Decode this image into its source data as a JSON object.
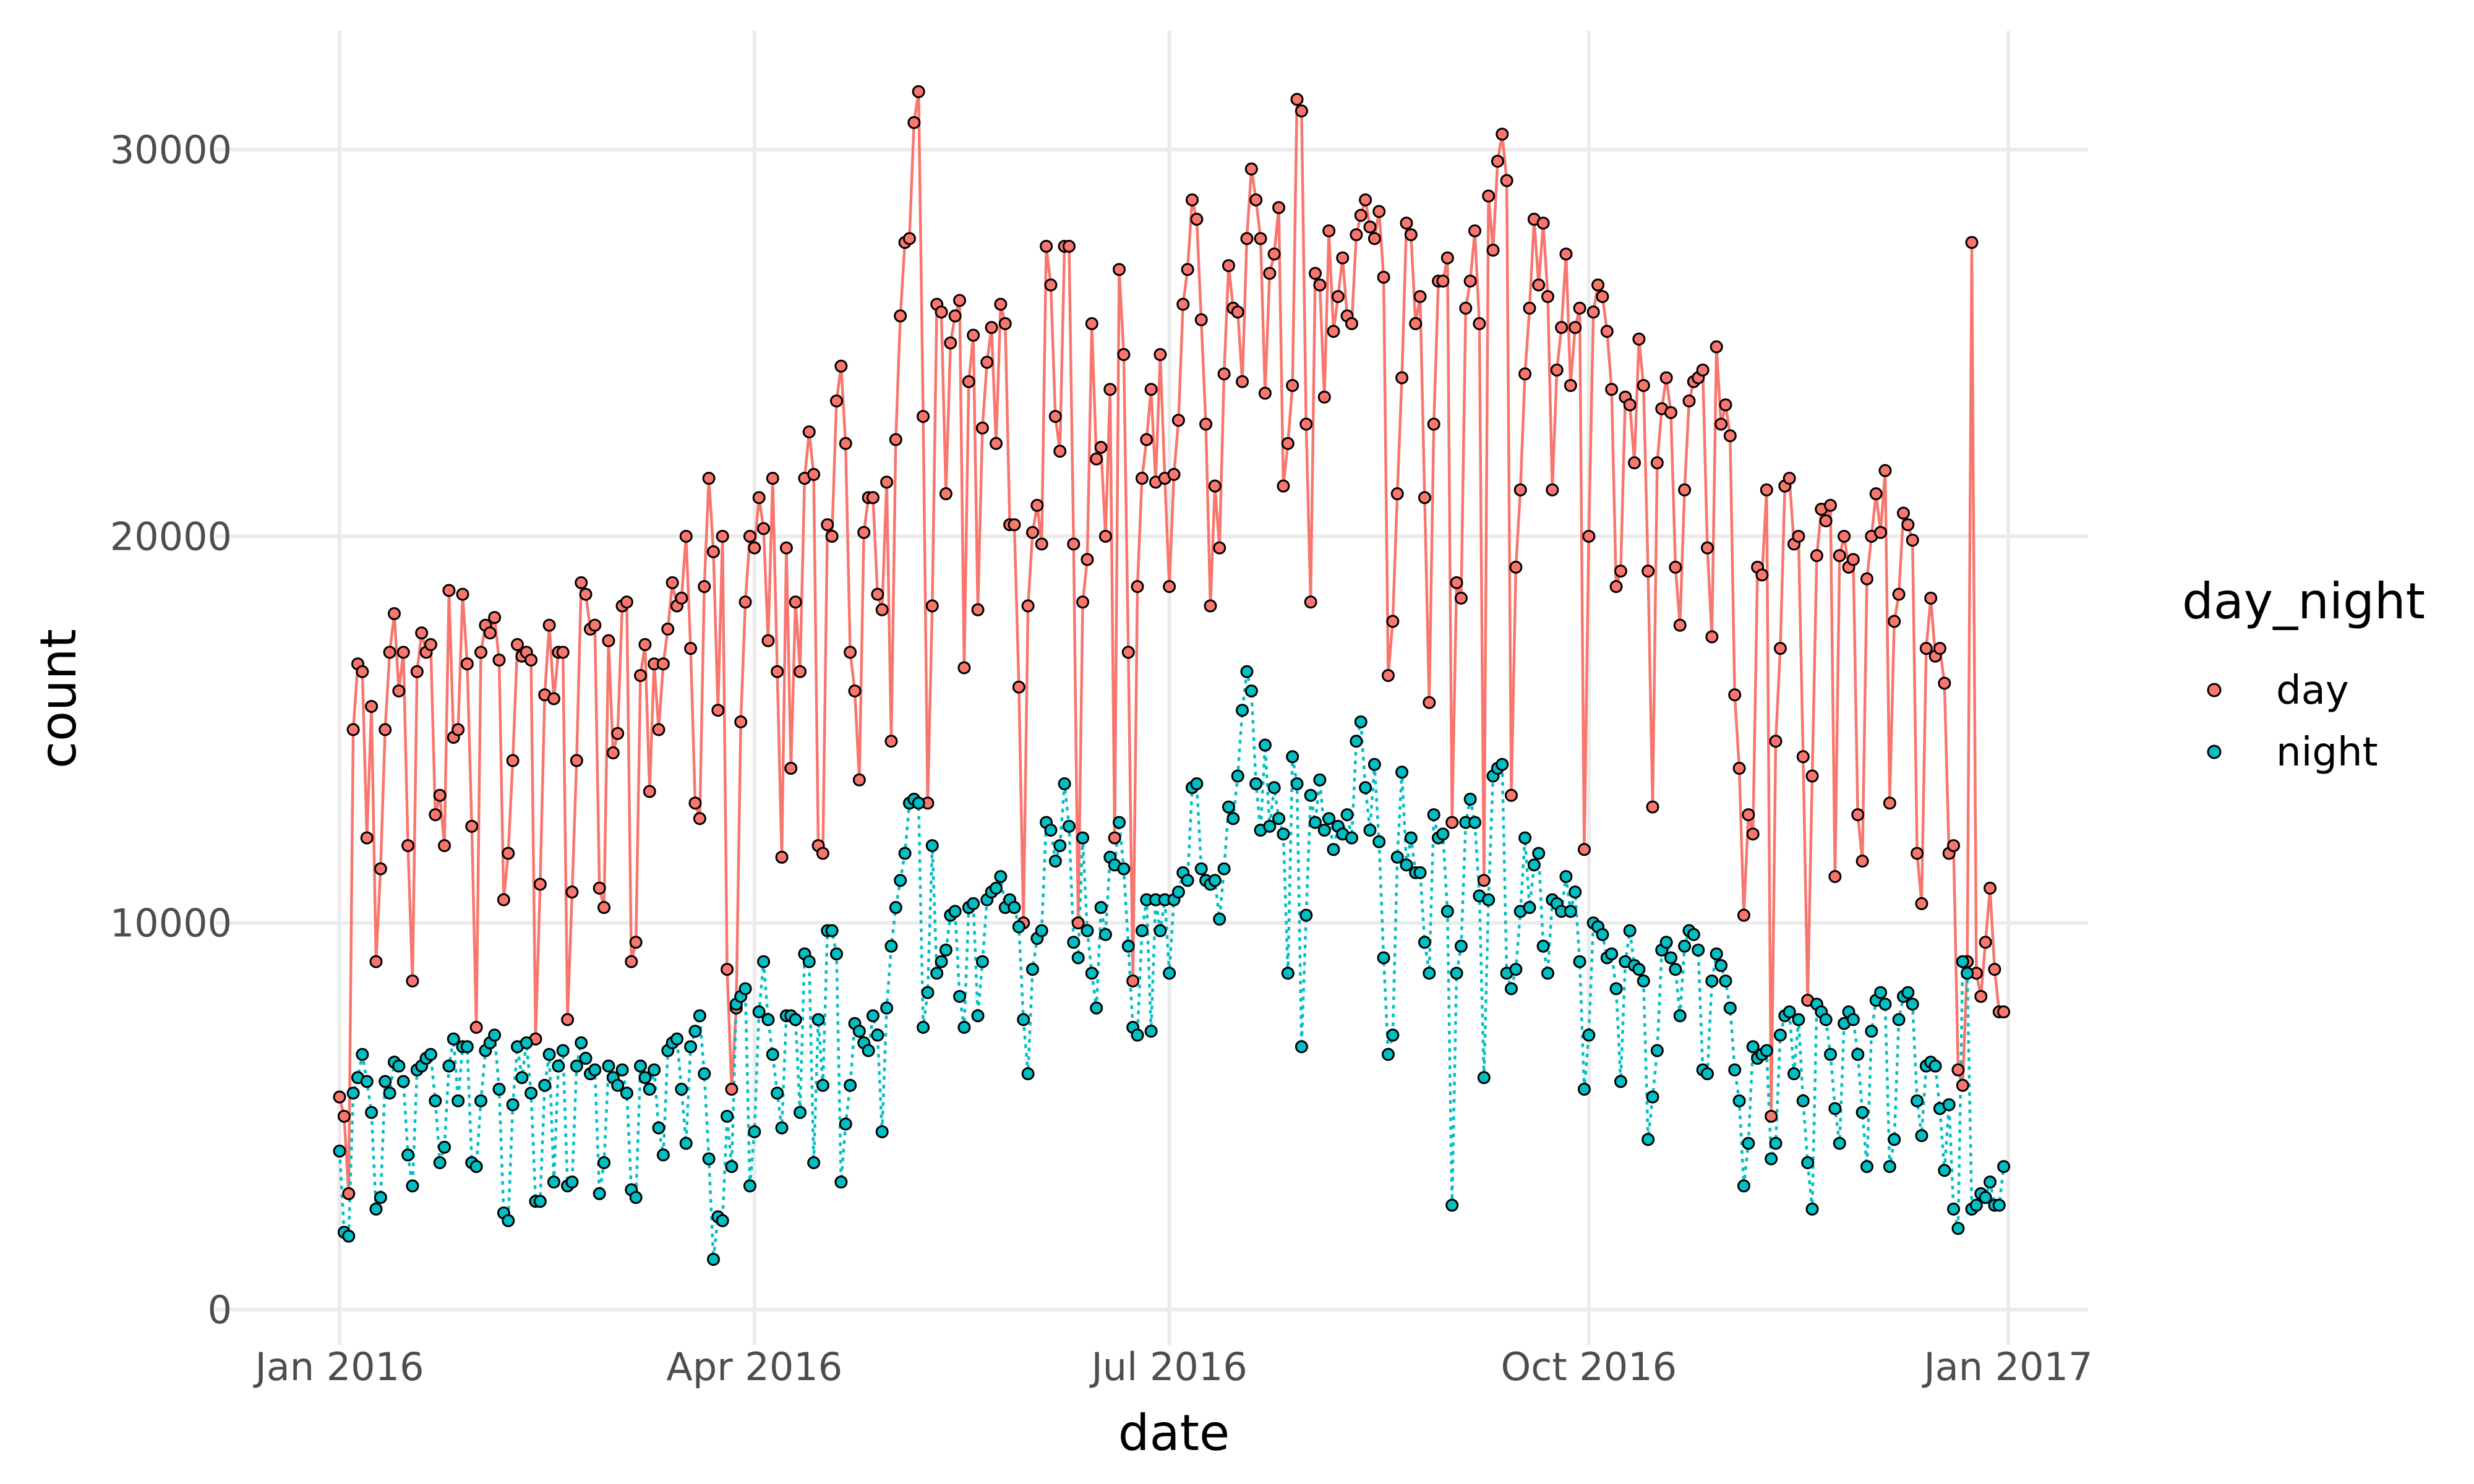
{
  "chart_data": {
    "type": "line",
    "title": "",
    "xlabel": "date",
    "ylabel": "count",
    "x_axis": {
      "type": "date",
      "range": [
        "2016-01-01",
        "2016-12-31"
      ],
      "ticks": [
        "2016-01-01",
        "2016-04-01",
        "2016-07-01",
        "2016-10-01",
        "2017-01-01"
      ],
      "tick_labels": [
        "Jan 2016",
        "Apr 2016",
        "Jul 2016",
        "Oct 2016",
        "Jan 2017"
      ]
    },
    "y_axis": {
      "range": [
        0,
        32000
      ],
      "ticks": [
        0,
        10000,
        20000,
        30000
      ],
      "tick_labels": [
        "0",
        "10000",
        "20000",
        "30000"
      ]
    },
    "grid": true,
    "legend": {
      "title": "day_night",
      "placement": "right"
    },
    "series": [
      {
        "name": "day",
        "color": "#F8766D",
        "line_style": "solid",
        "marker": "circle",
        "values_by_month": {
          "2016-01": [
            5500,
            5000,
            3000,
            15000,
            16700,
            16500,
            12200,
            15600,
            9000,
            11400,
            15000,
            17000,
            18000,
            16000,
            17000,
            12000,
            8500,
            16500,
            17500,
            17000,
            17200,
            12800,
            13300,
            12000,
            18600,
            14800,
            15000,
            18500,
            16700,
            12500,
            7300
          ],
          "2016-02": [
            17000,
            17700,
            17500,
            17900,
            16800,
            10600,
            11800,
            14200,
            17200,
            16900,
            17000,
            16800,
            7000,
            11000,
            15900,
            17700,
            15800,
            17000,
            17000,
            7500,
            10800,
            14200,
            18800,
            18500,
            17600,
            17700,
            10900,
            10400,
            17300
          ],
          "2016-03": [
            14400,
            14900,
            18200,
            18300,
            9000,
            9500,
            16400,
            17200,
            13400,
            16700,
            15000,
            16700,
            17600,
            18800,
            18200,
            18400,
            20000,
            17100,
            13100,
            12700,
            18700,
            21500,
            19600,
            15500,
            20000,
            8800,
            5700,
            7800,
            15200,
            18300,
            20000
          ],
          "2016-04": [
            19700,
            21000,
            20200,
            17300,
            21500,
            16500,
            11700,
            19700,
            14000,
            18300,
            16500,
            21500,
            22700,
            21600,
            12000,
            11800,
            20300,
            20000,
            23500,
            24400,
            22400,
            17000,
            16000,
            13700,
            20100,
            21000,
            21000,
            18500,
            18100,
            21400
          ],
          "2016-05": [
            14700,
            22500,
            25700,
            27600,
            27700,
            30700,
            31500,
            23100,
            13100,
            18200,
            26000,
            25800,
            21100,
            25000,
            25700,
            26100,
            16600,
            24000,
            25200,
            18100,
            22800,
            24500,
            25400,
            22400,
            26000,
            25500,
            20300,
            20300,
            16100,
            10000,
            18200
          ],
          "2016-06": [
            20100,
            20800,
            19800,
            27500,
            26500,
            23100,
            22200,
            27500,
            27500,
            19800,
            10000,
            18300,
            19400,
            25500,
            22000,
            22300,
            20000,
            23800,
            12200,
            26900,
            24700,
            17000,
            8500,
            18700,
            21500,
            22500,
            23800,
            21400,
            24700,
            21500
          ],
          "2016-07": [
            18700,
            21600,
            23000,
            26000,
            26900,
            28700,
            28200,
            25600,
            22900,
            18200,
            21300,
            19700,
            24200,
            27000,
            25900,
            25800,
            24000,
            27700,
            29500,
            28700,
            27700,
            23700,
            26800,
            27300,
            28500,
            21300,
            22400,
            23900,
            31300,
            31000,
            22900
          ],
          "2016-08": [
            18300,
            26800,
            26500,
            23600,
            27900,
            25300,
            26200,
            27200,
            25700,
            25500,
            27800,
            28300,
            28700,
            28000,
            27700,
            28400,
            26700,
            16400,
            17800,
            21100,
            24100,
            28100,
            27800,
            25500,
            26200,
            21000,
            15700,
            22900,
            26600,
            26600,
            27200
          ],
          "2016-09": [
            12600,
            18800,
            18400,
            25900,
            26600,
            27900,
            25500,
            11100,
            28800,
            27400,
            29700,
            30400,
            29200,
            13300,
            19200,
            21200,
            24200,
            25900,
            28200,
            26500,
            28100,
            26200,
            21200,
            24300,
            25400,
            27300,
            23900,
            25400,
            25900,
            11900
          ],
          "2016-10": [
            20000,
            25800,
            26500,
            26200,
            25300,
            23800,
            18700,
            19100,
            23600,
            23400,
            21900,
            25100,
            23900,
            19100,
            13000,
            21900,
            23300,
            24100,
            23200,
            19200,
            17700,
            21200,
            23500,
            24000,
            24100,
            24300,
            19700,
            17400,
            24900,
            22900,
            23400
          ],
          "2016-11": [
            22600,
            15900,
            14000,
            10200,
            12800,
            12300,
            19200,
            19000,
            21200,
            5000,
            14700,
            17100,
            21300,
            21500,
            19800,
            20000,
            14300,
            8000,
            13800,
            19500,
            20700,
            20400,
            20800,
            11200,
            19500,
            20000,
            19200,
            19400,
            12800,
            11600
          ],
          "2016-12": [
            18900,
            20000,
            21100,
            20100,
            21700,
            13100,
            17800,
            18500,
            20600,
            20300,
            19900,
            11800,
            10500,
            17100,
            18400,
            16900,
            17100,
            16200,
            11800,
            12000,
            6200,
            5800,
            9000,
            27600,
            8700,
            8100,
            9500,
            10900,
            8800,
            7700,
            7700
          ]
        }
      },
      {
        "name": "night",
        "color": "#00BFC4",
        "line_style": "dotted",
        "marker": "circle",
        "values_by_month": {
          "2016-01": [
            4100,
            2000,
            1900,
            5600,
            6000,
            6600,
            5900,
            5100,
            2600,
            2900,
            5900,
            5600,
            6400,
            6300,
            5900,
            4000,
            3200,
            6200,
            6300,
            6500,
            6600,
            5400,
            3800,
            4200,
            6300,
            7000,
            5400,
            6800,
            6800,
            3800,
            3700
          ],
          "2016-02": [
            5400,
            6700,
            6900,
            7100,
            5700,
            2500,
            2300,
            5300,
            6800,
            6000,
            6900,
            5600,
            2800,
            2800,
            5800,
            6600,
            3300,
            6300,
            6700,
            3200,
            3300,
            6300,
            6900,
            6500,
            6100,
            6200,
            3000,
            3800,
            6300
          ],
          "2016-03": [
            6000,
            5800,
            6200,
            5600,
            3100,
            2900,
            6300,
            6000,
            5700,
            6200,
            4700,
            4000,
            6700,
            6900,
            7000,
            5700,
            4300,
            6800,
            7200,
            7600,
            6100,
            3900,
            1300,
            2400,
            2300,
            5000,
            3700,
            7900,
            8100,
            8300,
            3200
          ],
          "2016-04": [
            4600,
            7700,
            9000,
            7500,
            6600,
            5600,
            4700,
            7600,
            7600,
            7500,
            5100,
            9200,
            9000,
            3800,
            7500,
            5800,
            9800,
            9800,
            9200,
            3300,
            4800,
            5800,
            7400,
            7200,
            6900,
            6700,
            7600,
            7100,
            4600,
            7800
          ],
          "2016-05": [
            9400,
            10400,
            11100,
            11800,
            13100,
            13200,
            13100,
            7300,
            8200,
            12000,
            8700,
            9000,
            9300,
            10200,
            10300,
            8100,
            7300,
            10400,
            10500,
            7600,
            9000,
            10600,
            10800,
            10900,
            11200,
            10400,
            10600,
            10400,
            9900,
            7500,
            6100
          ],
          "2016-06": [
            8800,
            9600,
            9800,
            12600,
            12400,
            11600,
            12000,
            13600,
            12500,
            9500,
            9100,
            12200,
            9800,
            8700,
            7800,
            10400,
            9700,
            11700,
            11500,
            12600,
            11400,
            9400,
            7300,
            7100,
            9800,
            10600,
            7200,
            10600,
            9800,
            10600
          ],
          "2016-07": [
            8700,
            10600,
            10800,
            11300,
            11100,
            13500,
            13600,
            11400,
            11100,
            11000,
            11100,
            10100,
            11400,
            13000,
            12700,
            13800,
            15500,
            16500,
            16000,
            13600,
            12400,
            14600,
            12500,
            13500,
            12700,
            12300,
            8700,
            14300,
            13600,
            6800,
            10200
          ],
          "2016-08": [
            13300,
            12600,
            13700,
            12400,
            12700,
            11900,
            12500,
            12300,
            12800,
            12200,
            14700,
            15200,
            13500,
            12400,
            14100,
            12100,
            9100,
            6600,
            7100,
            11700,
            13900,
            11500,
            12200,
            11300,
            11300,
            9500,
            8700,
            12800,
            12200,
            12300,
            10300
          ],
          "2016-09": [
            2700,
            8700,
            9400,
            12600,
            13200,
            12600,
            10700,
            6000,
            10600,
            13800,
            14000,
            14100,
            8700,
            8300,
            8800,
            10300,
            12200,
            10400,
            11500,
            11800,
            9400,
            8700,
            10600,
            10500,
            10300,
            11200,
            10300,
            10800,
            9000,
            5700
          ],
          "2016-10": [
            7100,
            10000,
            9900,
            9700,
            9100,
            9200,
            8300,
            5900,
            9000,
            9800,
            8900,
            8800,
            8500,
            4400,
            5500,
            6700,
            9300,
            9500,
            9100,
            8800,
            7600,
            9400,
            9800,
            9700,
            9300,
            6200,
            6100,
            8500,
            9200,
            8900,
            8500
          ],
          "2016-11": [
            7800,
            6200,
            5400,
            3200,
            4300,
            6800,
            6500,
            6600,
            6700,
            3900,
            4300,
            7100,
            7600,
            7700,
            6100,
            7500,
            5400,
            3800,
            2600,
            7900,
            7700,
            7500,
            6600,
            5200,
            4300,
            7400,
            7700,
            7500,
            6600,
            5100
          ],
          "2016-12": [
            3700,
            7200,
            8000,
            8200,
            7900,
            3700,
            4400,
            7500,
            8100,
            8200,
            7900,
            5400,
            4500,
            6300,
            6400,
            6300,
            5200,
            3600,
            5300,
            2600,
            2100,
            9000,
            8700,
            2600,
            2700,
            3000,
            2900,
            3300,
            2700,
            2700,
            3700
          ]
        }
      }
    ]
  }
}
